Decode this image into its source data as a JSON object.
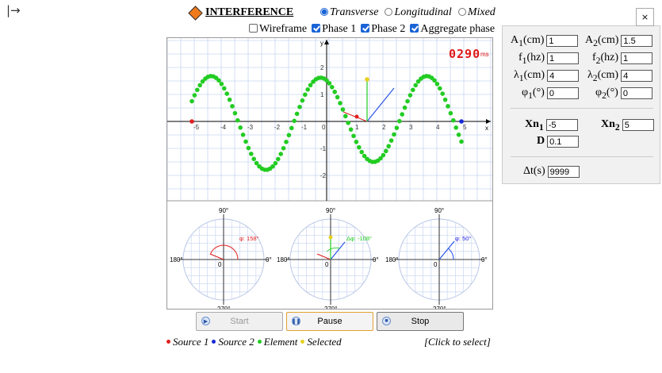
{
  "corner_arrow": "|→",
  "title": "INTERFERENCE",
  "modes": [
    {
      "label": "Transverse",
      "selected": true
    },
    {
      "label": "Longitudinal",
      "selected": false
    },
    {
      "label": "Mixed",
      "selected": false
    }
  ],
  "options": [
    {
      "label": "Wireframe",
      "checked": false
    },
    {
      "label": "Phase 1",
      "checked": true
    },
    {
      "label": "Phase 2",
      "checked": true
    },
    {
      "label": "Aggregate phase",
      "checked": true
    }
  ],
  "timer": {
    "value": "0290",
    "unit": "ms"
  },
  "wave_plot": {
    "x_axis_label": "x",
    "y_axis_label": "y",
    "x_ticks": [
      "-5",
      "-4",
      "-3",
      "-2",
      "-1",
      "0",
      "1",
      "2",
      "3",
      "4",
      "5"
    ],
    "y_ticks": [
      "2",
      "1",
      "-1",
      "-2"
    ]
  },
  "phasors": [
    {
      "top": "90°",
      "left": "180°",
      "right": "0°",
      "bottom": "270°",
      "center": "0",
      "annotation": "φ: 158°",
      "annotation_color": "#e02020"
    },
    {
      "top": "90°",
      "left": "180°",
      "right": "0°",
      "bottom": "270°",
      "center": "0",
      "annotation": "Δφ: -108°",
      "annotation_color": "#22cc22"
    },
    {
      "top": "90°",
      "left": "180°",
      "right": "0°",
      "bottom": "270°",
      "center": "0",
      "annotation": "φ: 50°",
      "annotation_color": "#2020e0"
    }
  ],
  "buttons": {
    "start": "Start",
    "pause": "Pause",
    "stop": "Stop"
  },
  "legend": [
    {
      "label": "Source 1",
      "color": "#e02020"
    },
    {
      "label": "Source 2",
      "color": "#1a2ad6"
    },
    {
      "label": "Element",
      "color": "#22cc22"
    },
    {
      "label": "Selected",
      "color": "#e8d020"
    }
  ],
  "click_hint": "[Click to select]",
  "panel": {
    "close_label": "×",
    "A1": {
      "label": "A",
      "sub": "1",
      "unit": "(cm)",
      "value": "1"
    },
    "A2": {
      "label": "A",
      "sub": "2",
      "unit": "(cm)",
      "value": "1.5"
    },
    "f1": {
      "label": "f",
      "sub": "1",
      "unit": "(hz)",
      "value": "1"
    },
    "f2": {
      "label": "f",
      "sub": "2",
      "unit": "(hz)",
      "value": "1"
    },
    "l1": {
      "label": "λ",
      "sub": "1",
      "unit": "(cm)",
      "value": "4"
    },
    "l2": {
      "label": "λ",
      "sub": "2",
      "unit": "(cm)",
      "value": "4"
    },
    "p1": {
      "label": "φ",
      "sub": "1",
      "unit": "(°)",
      "value": "0"
    },
    "p2": {
      "label": "φ",
      "sub": "2",
      "unit": "(°)",
      "value": "0"
    },
    "Xn1": {
      "label": "Xn",
      "sub": "1",
      "value": "-5"
    },
    "Xn2": {
      "label": "Xn",
      "sub": "2",
      "value": "5"
    },
    "D": {
      "label": "D",
      "value": "0.1"
    },
    "dt": {
      "label": "Δt(s)",
      "value": "9999"
    }
  }
}
